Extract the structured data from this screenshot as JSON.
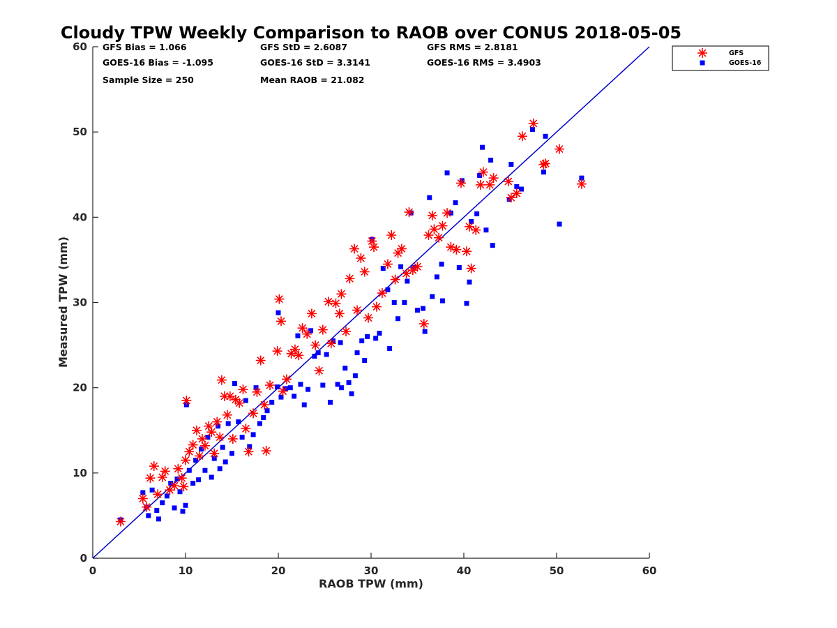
{
  "chart_data": {
    "type": "scatter",
    "title": "Cloudy TPW Weekly Comparison to RAOB over CONUS 2018-05-05",
    "xlabel": "RAOB TPW (mm)",
    "ylabel": "Measured TPW (mm)",
    "xlim": [
      0,
      60
    ],
    "ylim": [
      0,
      60
    ],
    "xticks": [
      "0",
      "10",
      "20",
      "30",
      "40",
      "50",
      "60"
    ],
    "yticks": [
      "0",
      "10",
      "20",
      "30",
      "40",
      "50",
      "60"
    ],
    "grid": false,
    "legend_position": "top-right (outside plot)",
    "stats": [
      [
        "GFS Bias = 1.066",
        "GFS StD = 2.6087",
        "GFS RMS = 2.8181"
      ],
      [
        "GOES-16 Bias = -1.095",
        "GOES-16 StD = 3.3141",
        "GOES-16 RMS = 3.4903"
      ],
      [
        "Sample Size = 250",
        "Mean RAOB = 21.082",
        ""
      ]
    ],
    "reference_line": {
      "x": [
        0,
        60
      ],
      "y": [
        0,
        60
      ],
      "color": "#0000cc"
    },
    "series": [
      {
        "name": "GFS",
        "marker": "asterisk",
        "color": "#ff0000",
        "points": [
          [
            3,
            4.3
          ],
          [
            5.4,
            7
          ],
          [
            5.8,
            6
          ],
          [
            6.2,
            9.4
          ],
          [
            6.6,
            10.8
          ],
          [
            7,
            7.5
          ],
          [
            7.5,
            9.5
          ],
          [
            7.8,
            10.2
          ],
          [
            8.3,
            8
          ],
          [
            8.8,
            8.5
          ],
          [
            9.2,
            10.5
          ],
          [
            9.6,
            9.4
          ],
          [
            9.8,
            8.4
          ],
          [
            10,
            11.5
          ],
          [
            10.1,
            18.5
          ],
          [
            10.4,
            12.5
          ],
          [
            10.8,
            13.3
          ],
          [
            11.2,
            15
          ],
          [
            11.5,
            12
          ],
          [
            11.8,
            14
          ],
          [
            12.1,
            13.2
          ],
          [
            12.5,
            15.5
          ],
          [
            12.8,
            14.8
          ],
          [
            13.1,
            12.3
          ],
          [
            13.4,
            16
          ],
          [
            13.7,
            14.2
          ],
          [
            13.9,
            20.9
          ],
          [
            14.2,
            19
          ],
          [
            14.5,
            16.8
          ],
          [
            14.8,
            19
          ],
          [
            15.1,
            14
          ],
          [
            15.4,
            18.6
          ],
          [
            15.8,
            18.2
          ],
          [
            16.2,
            19.8
          ],
          [
            16.5,
            15.2
          ],
          [
            16.8,
            12.5
          ],
          [
            17.3,
            17
          ],
          [
            17.7,
            19.5
          ],
          [
            18.1,
            23.2
          ],
          [
            18.5,
            18
          ],
          [
            18.7,
            12.6
          ],
          [
            19.1,
            20.3
          ],
          [
            19.9,
            24.3
          ],
          [
            20.1,
            30.4
          ],
          [
            20.3,
            27.8
          ],
          [
            20.5,
            19.6
          ],
          [
            20.9,
            21
          ],
          [
            21.4,
            24
          ],
          [
            21.8,
            24.5
          ],
          [
            22.2,
            23.8
          ],
          [
            22.6,
            27
          ],
          [
            23.1,
            26.3
          ],
          [
            23.6,
            28.7
          ],
          [
            24,
            25
          ],
          [
            24.4,
            22
          ],
          [
            24.8,
            26.8
          ],
          [
            25.4,
            30.1
          ],
          [
            25.7,
            25.2
          ],
          [
            26.2,
            29.9
          ],
          [
            26.6,
            28.7
          ],
          [
            26.8,
            31
          ],
          [
            27.3,
            26.6
          ],
          [
            27.7,
            32.8
          ],
          [
            28.2,
            36.3
          ],
          [
            28.5,
            29.1
          ],
          [
            28.9,
            35.2
          ],
          [
            29.3,
            33.6
          ],
          [
            29.7,
            28.2
          ],
          [
            30.1,
            37.2
          ],
          [
            30.3,
            36.5
          ],
          [
            30.6,
            29.5
          ],
          [
            31.2,
            31.1
          ],
          [
            31.8,
            34.5
          ],
          [
            32.2,
            37.9
          ],
          [
            32.6,
            32.7
          ],
          [
            32.9,
            35.8
          ],
          [
            33.3,
            36.3
          ],
          [
            33.8,
            33.4
          ],
          [
            34.1,
            40.6
          ],
          [
            34.5,
            33.8
          ],
          [
            35,
            34.2
          ],
          [
            35.7,
            27.5
          ],
          [
            36.2,
            37.9
          ],
          [
            36.6,
            40.2
          ],
          [
            36.8,
            38.6
          ],
          [
            37.3,
            37.6
          ],
          [
            37.7,
            39
          ],
          [
            38.2,
            40.5
          ],
          [
            38.6,
            36.5
          ],
          [
            39.2,
            36.2
          ],
          [
            39.7,
            44
          ],
          [
            40.3,
            36
          ],
          [
            40.6,
            38.9
          ],
          [
            40.8,
            34
          ],
          [
            41.3,
            38.5
          ],
          [
            41.8,
            43.8
          ],
          [
            42.1,
            45.3
          ],
          [
            42.8,
            43.8
          ],
          [
            43.2,
            44.6
          ],
          [
            44.8,
            44.2
          ],
          [
            45.1,
            42.3
          ],
          [
            45.7,
            42.8
          ],
          [
            46.3,
            49.5
          ],
          [
            47.5,
            51
          ],
          [
            48.6,
            46.2
          ],
          [
            48.8,
            46.3
          ],
          [
            50.3,
            48
          ],
          [
            52.7,
            43.9
          ]
        ]
      },
      {
        "name": "GOES-16",
        "marker": "square",
        "color": "#0000ff",
        "points": [
          [
            3,
            4.5
          ],
          [
            5.4,
            7.7
          ],
          [
            5.8,
            6
          ],
          [
            6,
            5
          ],
          [
            6.4,
            8
          ],
          [
            6.9,
            5.6
          ],
          [
            7.1,
            4.6
          ],
          [
            7.5,
            6.5
          ],
          [
            8,
            7.3
          ],
          [
            8.4,
            8.8
          ],
          [
            8.8,
            5.9
          ],
          [
            9.1,
            9.3
          ],
          [
            9.4,
            7.8
          ],
          [
            9.7,
            5.5
          ],
          [
            10,
            6.2
          ],
          [
            10.1,
            18
          ],
          [
            10.4,
            10.3
          ],
          [
            10.8,
            8.8
          ],
          [
            11.1,
            11.5
          ],
          [
            11.4,
            9.2
          ],
          [
            11.7,
            12.8
          ],
          [
            12.1,
            10.3
          ],
          [
            12.4,
            14.2
          ],
          [
            12.8,
            9.5
          ],
          [
            13.1,
            11.7
          ],
          [
            13.5,
            15.5
          ],
          [
            13.7,
            10.5
          ],
          [
            14,
            13
          ],
          [
            14.3,
            11.3
          ],
          [
            14.6,
            15.8
          ],
          [
            15,
            12.3
          ],
          [
            15.3,
            20.5
          ],
          [
            15.7,
            16
          ],
          [
            16.1,
            14.2
          ],
          [
            16.5,
            18.5
          ],
          [
            16.9,
            13.1
          ],
          [
            17.3,
            14.5
          ],
          [
            17.6,
            20
          ],
          [
            18,
            15.8
          ],
          [
            18.4,
            16.5
          ],
          [
            18.8,
            17.3
          ],
          [
            19.3,
            18.3
          ],
          [
            19.9,
            20.1
          ],
          [
            20,
            28.8
          ],
          [
            20.3,
            18.9
          ],
          [
            20.8,
            19.9
          ],
          [
            21.3,
            20
          ],
          [
            21.7,
            19
          ],
          [
            22.1,
            26.1
          ],
          [
            22.4,
            20.4
          ],
          [
            22.8,
            18
          ],
          [
            23.2,
            19.8
          ],
          [
            23.5,
            26.7
          ],
          [
            23.9,
            23.7
          ],
          [
            24.3,
            24.1
          ],
          [
            24.8,
            20.3
          ],
          [
            25.2,
            23.9
          ],
          [
            25.6,
            18.3
          ],
          [
            25.9,
            25.5
          ],
          [
            26.4,
            20.4
          ],
          [
            26.7,
            25.3
          ],
          [
            26.8,
            20
          ],
          [
            27.2,
            22.3
          ],
          [
            27.6,
            20.6
          ],
          [
            27.9,
            19.3
          ],
          [
            28.3,
            21.4
          ],
          [
            28.5,
            24.1
          ],
          [
            29,
            25.5
          ],
          [
            29.3,
            23.2
          ],
          [
            29.6,
            26
          ],
          [
            30.1,
            37.4
          ],
          [
            30.5,
            25.8
          ],
          [
            30.9,
            26.4
          ],
          [
            31.3,
            34
          ],
          [
            31.8,
            31.5
          ],
          [
            32,
            24.6
          ],
          [
            32.5,
            30
          ],
          [
            32.9,
            28.1
          ],
          [
            33.2,
            34.2
          ],
          [
            33.6,
            30
          ],
          [
            33.9,
            32.5
          ],
          [
            34.3,
            40.5
          ],
          [
            34.6,
            34.1
          ],
          [
            35,
            29.1
          ],
          [
            35.6,
            29.3
          ],
          [
            35.8,
            26.6
          ],
          [
            36.3,
            42.3
          ],
          [
            36.6,
            30.7
          ],
          [
            37.1,
            33
          ],
          [
            37.6,
            34.5
          ],
          [
            37.7,
            30.2
          ],
          [
            38.2,
            45.2
          ],
          [
            38.6,
            40.5
          ],
          [
            39.1,
            41.7
          ],
          [
            39.5,
            34.1
          ],
          [
            39.8,
            44.3
          ],
          [
            40.3,
            29.9
          ],
          [
            40.6,
            32.4
          ],
          [
            40.8,
            39.5
          ],
          [
            41.4,
            40.4
          ],
          [
            41.7,
            44.9
          ],
          [
            42,
            48.2
          ],
          [
            42.4,
            38.5
          ],
          [
            42.9,
            46.7
          ],
          [
            43.1,
            36.7
          ],
          [
            44.9,
            42.1
          ],
          [
            45.1,
            46.2
          ],
          [
            45.7,
            43.6
          ],
          [
            46.2,
            43.3
          ],
          [
            47.4,
            50.3
          ],
          [
            48.6,
            45.3
          ],
          [
            48.8,
            49.5
          ],
          [
            50.3,
            39.2
          ],
          [
            52.7,
            44.6
          ]
        ]
      }
    ]
  }
}
